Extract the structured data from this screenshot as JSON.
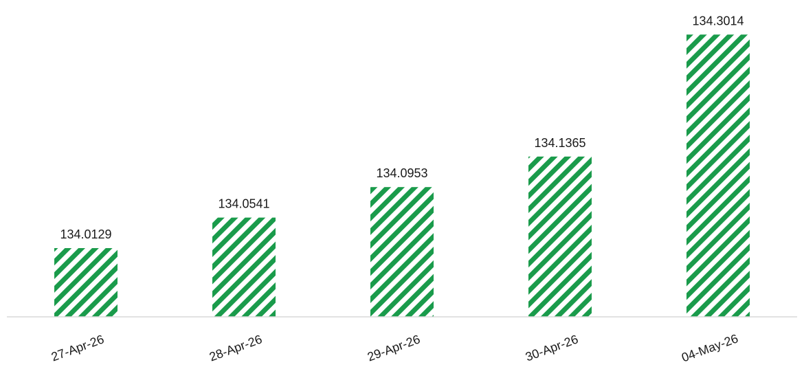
{
  "chart_data": {
    "type": "bar",
    "categories": [
      "27-Apr-26",
      "28-Apr-26",
      "29-Apr-26",
      "30-Apr-26",
      "04-May-26"
    ],
    "values": [
      134.0129,
      134.0541,
      134.0953,
      134.1365,
      134.3014
    ],
    "data_labels": [
      "134.0129",
      "134.0541",
      "134.0953",
      "134.1365",
      "134.3014"
    ],
    "title": "",
    "xlabel": "",
    "ylabel": "",
    "ylim": [
      133.92,
      134.31
    ],
    "grid": false,
    "legend": "none",
    "bar_fill": "diagonal-stripes",
    "colors": {
      "bar_stripe": "#1a9b4b",
      "bar_background": "#ffffff",
      "axis": "#d9d9d9",
      "text": "#1a1a1a"
    }
  }
}
